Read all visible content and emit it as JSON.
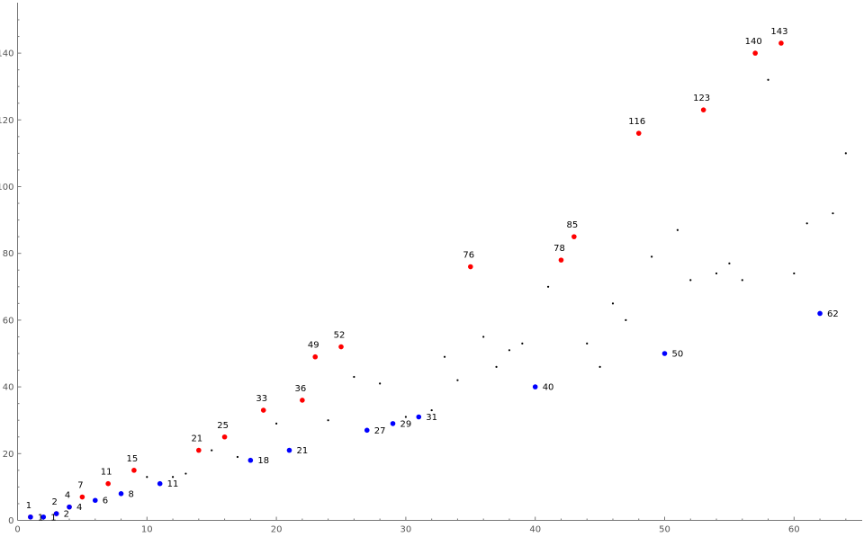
{
  "chart_data": {
    "type": "scatter",
    "title": "",
    "xlabel": "",
    "ylabel": "",
    "xlim": [
      0,
      65
    ],
    "ylim": [
      0,
      150
    ],
    "x_ticks": [
      0,
      10,
      20,
      30,
      40,
      50,
      60
    ],
    "y_ticks": [
      0,
      20,
      40,
      60,
      80,
      100,
      120,
      140
    ],
    "x_tick_labels": [
      "0",
      "10",
      "20",
      "30",
      "40",
      "50",
      "60"
    ],
    "y_tick_labels": [
      "0",
      "20",
      "40",
      "60",
      "80",
      "100",
      "120",
      "140"
    ],
    "grid": false,
    "legend": "none",
    "series": [
      {
        "color": "#ff0000",
        "labeled": true,
        "label_position": "above",
        "points": [
          {
            "x": 1,
            "y": 1,
            "label": "1"
          },
          {
            "x": 3,
            "y": 2,
            "label": "2"
          },
          {
            "x": 4,
            "y": 4,
            "label": "4"
          },
          {
            "x": 5,
            "y": 7,
            "label": "7"
          },
          {
            "x": 7,
            "y": 11,
            "label": "11"
          },
          {
            "x": 9,
            "y": 15,
            "label": "15"
          },
          {
            "x": 14,
            "y": 21,
            "label": "21"
          },
          {
            "x": 16,
            "y": 25,
            "label": "25"
          },
          {
            "x": 19,
            "y": 33,
            "label": "33"
          },
          {
            "x": 22,
            "y": 36,
            "label": "36"
          },
          {
            "x": 23,
            "y": 49,
            "label": "49"
          },
          {
            "x": 25,
            "y": 52,
            "label": "52"
          },
          {
            "x": 35,
            "y": 76,
            "label": "76"
          },
          {
            "x": 42,
            "y": 78,
            "label": "78"
          },
          {
            "x": 43,
            "y": 85,
            "label": "85"
          },
          {
            "x": 48,
            "y": 116,
            "label": "116"
          },
          {
            "x": 53,
            "y": 123,
            "label": "123"
          },
          {
            "x": 57,
            "y": 140,
            "label": "140"
          },
          {
            "x": 59,
            "y": 143,
            "label": "143"
          }
        ]
      },
      {
        "color": "#0000ff",
        "labeled": true,
        "label_position": "right",
        "points": [
          {
            "x": 1,
            "y": 1,
            "label": "1"
          },
          {
            "x": 2,
            "y": 1,
            "label": "1"
          },
          {
            "x": 3,
            "y": 2,
            "label": "2"
          },
          {
            "x": 4,
            "y": 4,
            "label": "4"
          },
          {
            "x": 6,
            "y": 6,
            "label": "6"
          },
          {
            "x": 8,
            "y": 8,
            "label": "8"
          },
          {
            "x": 11,
            "y": 11,
            "label": "11"
          },
          {
            "x": 18,
            "y": 18,
            "label": "18"
          },
          {
            "x": 21,
            "y": 21,
            "label": "21"
          },
          {
            "x": 27,
            "y": 27,
            "label": "27"
          },
          {
            "x": 29,
            "y": 29,
            "label": "29"
          },
          {
            "x": 31,
            "y": 31,
            "label": "31"
          },
          {
            "x": 40,
            "y": 40,
            "label": "40"
          },
          {
            "x": 50,
            "y": 50,
            "label": "50"
          },
          {
            "x": 62,
            "y": 62,
            "label": "62"
          }
        ]
      },
      {
        "color": "#000000",
        "labeled": false,
        "points": [
          {
            "x": 10,
            "y": 13
          },
          {
            "x": 12,
            "y": 13
          },
          {
            "x": 13,
            "y": 14
          },
          {
            "x": 15,
            "y": 21
          },
          {
            "x": 17,
            "y": 19
          },
          {
            "x": 20,
            "y": 29
          },
          {
            "x": 24,
            "y": 30
          },
          {
            "x": 26,
            "y": 43
          },
          {
            "x": 28,
            "y": 41
          },
          {
            "x": 30,
            "y": 31
          },
          {
            "x": 32,
            "y": 33
          },
          {
            "x": 33,
            "y": 49
          },
          {
            "x": 34,
            "y": 42
          },
          {
            "x": 36,
            "y": 55
          },
          {
            "x": 37,
            "y": 46
          },
          {
            "x": 38,
            "y": 51
          },
          {
            "x": 39,
            "y": 53
          },
          {
            "x": 41,
            "y": 70
          },
          {
            "x": 44,
            "y": 53
          },
          {
            "x": 45,
            "y": 46
          },
          {
            "x": 46,
            "y": 65
          },
          {
            "x": 47,
            "y": 60
          },
          {
            "x": 49,
            "y": 79
          },
          {
            "x": 51,
            "y": 87
          },
          {
            "x": 52,
            "y": 72
          },
          {
            "x": 54,
            "y": 74
          },
          {
            "x": 55,
            "y": 77
          },
          {
            "x": 56,
            "y": 72
          },
          {
            "x": 58,
            "y": 132
          },
          {
            "x": 60,
            "y": 74
          },
          {
            "x": 61,
            "y": 89
          },
          {
            "x": 63,
            "y": 92
          },
          {
            "x": 64,
            "y": 110
          }
        ]
      }
    ]
  }
}
